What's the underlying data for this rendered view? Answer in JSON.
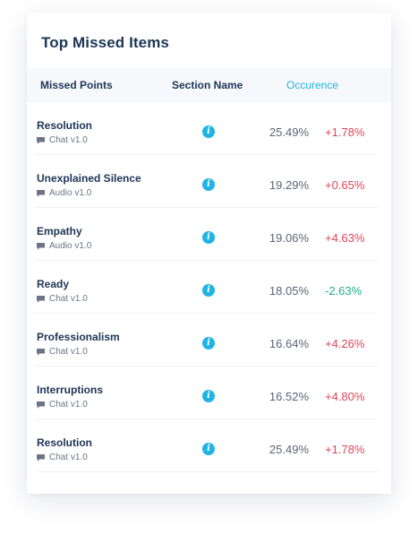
{
  "card": {
    "title": "Top Missed Items"
  },
  "table": {
    "headers": {
      "missed_points": "Missed Points",
      "section_name": "Section Name",
      "occurrence": "Occurence"
    },
    "rows": [
      {
        "title": "Resolution",
        "channel": "Chat v1.0",
        "icon": "info-icon",
        "percent": "25.49%",
        "delta": "+1.78%",
        "trend": "up"
      },
      {
        "title": "Unexplained Silence",
        "channel": "Audio v1.0",
        "icon": "info-icon",
        "percent": "19.29%",
        "delta": "+0.65%",
        "trend": "up"
      },
      {
        "title": "Empathy",
        "channel": "Audio v1.0",
        "icon": "info-icon",
        "percent": "19.06%",
        "delta": "+4.63%",
        "trend": "up"
      },
      {
        "title": "Ready",
        "channel": "Chat v1.0",
        "icon": "info-icon",
        "percent": "18.05%",
        "delta": "-2.63%",
        "trend": "down"
      },
      {
        "title": "Professionalism",
        "channel": "Chat v1.0",
        "icon": "info-icon",
        "percent": "16.64%",
        "delta": "+4.26%",
        "trend": "up"
      },
      {
        "title": "Interruptions",
        "channel": "Chat v1.0",
        "icon": "info-icon",
        "percent": "16.52%",
        "delta": "+4.80%",
        "trend": "up"
      },
      {
        "title": "Resolution",
        "channel": "Chat v1.0",
        "icon": "info-icon",
        "percent": "25.49%",
        "delta": "+1.78%",
        "trend": "up"
      }
    ]
  },
  "colors": {
    "title": "#1d3557",
    "accent": "#1fb4e4",
    "positive_change": "#e0455a",
    "negative_change": "#1fb08a"
  }
}
